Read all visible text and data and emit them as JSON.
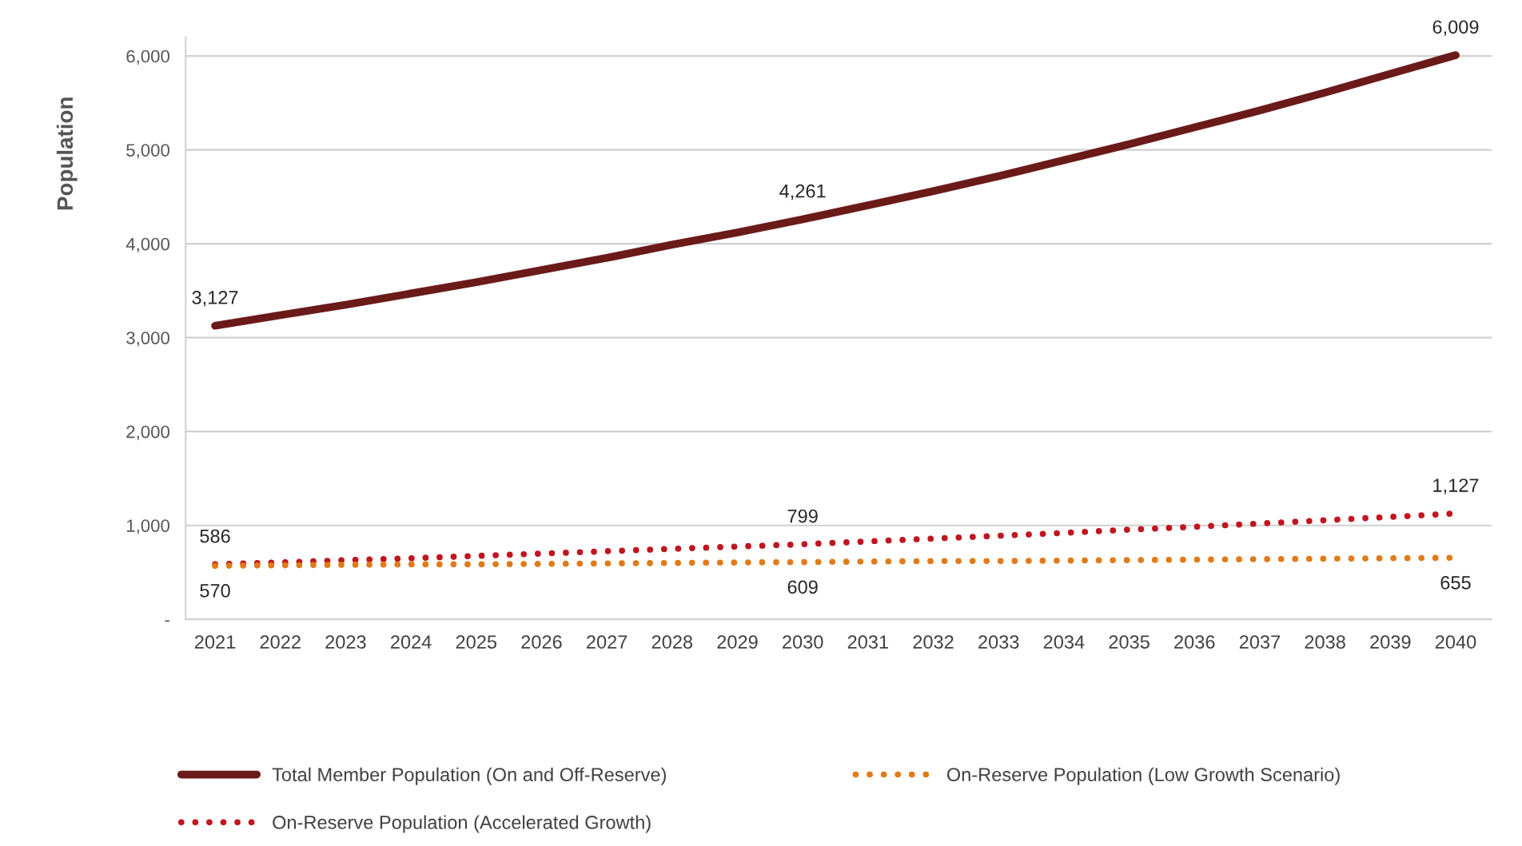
{
  "chart_data": {
    "type": "line",
    "ylabel": "Population",
    "categories": [
      "2021",
      "2022",
      "2023",
      "2024",
      "2025",
      "2026",
      "2027",
      "2028",
      "2029",
      "2030",
      "2031",
      "2032",
      "2033",
      "2034",
      "2035",
      "2036",
      "2037",
      "2038",
      "2039",
      "2040"
    ],
    "series": [
      {
        "name": "Total Member Population (On and Off-Reserve)",
        "color": "#6b1a1a",
        "line_style": "solid",
        "values": [
          3127,
          3240,
          3350,
          3470,
          3590,
          3720,
          3850,
          3990,
          4120,
          4261,
          4410,
          4560,
          4720,
          4890,
          5060,
          5240,
          5420,
          5610,
          5810,
          6009
        ],
        "value_labels": [
          "3,127",
          null,
          null,
          null,
          null,
          null,
          null,
          null,
          null,
          "4,261",
          null,
          null,
          null,
          null,
          null,
          null,
          null,
          null,
          null,
          "6,009"
        ]
      },
      {
        "name": "On-Reserve Population (Accelerated Growth)",
        "color": "#c0161f",
        "line_style": "dotted",
        "values": [
          586,
          605,
          630,
          650,
          675,
          700,
          725,
          750,
          775,
          799,
          830,
          860,
          890,
          920,
          955,
          985,
          1020,
          1055,
          1090,
          1127
        ],
        "value_labels": [
          "586",
          null,
          null,
          null,
          null,
          null,
          null,
          null,
          null,
          "799",
          null,
          null,
          null,
          null,
          null,
          null,
          null,
          null,
          null,
          "1,127"
        ]
      },
      {
        "name": "On-Reserve Population (Low Growth Scenario)",
        "color": "#e07b1a",
        "line_style": "dotted",
        "values": [
          570,
          575,
          580,
          585,
          585,
          590,
          595,
          600,
          605,
          609,
          615,
          620,
          620,
          625,
          630,
          635,
          640,
          645,
          650,
          655
        ],
        "value_labels": [
          "570",
          null,
          null,
          null,
          null,
          null,
          null,
          null,
          null,
          "609",
          null,
          null,
          null,
          null,
          null,
          null,
          null,
          null,
          null,
          "655"
        ]
      }
    ],
    "ylim": [
      0,
      6200
    ],
    "yticks": [
      {
        "value": 0,
        "label": "-"
      },
      {
        "value": 1000,
        "label": "1,000"
      },
      {
        "value": 2000,
        "label": "2,000"
      },
      {
        "value": 3000,
        "label": "3,000"
      },
      {
        "value": 4000,
        "label": "4,000"
      },
      {
        "value": 5000,
        "label": "5,000"
      },
      {
        "value": 6000,
        "label": "6,000"
      }
    ],
    "grid": "y",
    "legend": "bottom",
    "marker": "none"
  }
}
